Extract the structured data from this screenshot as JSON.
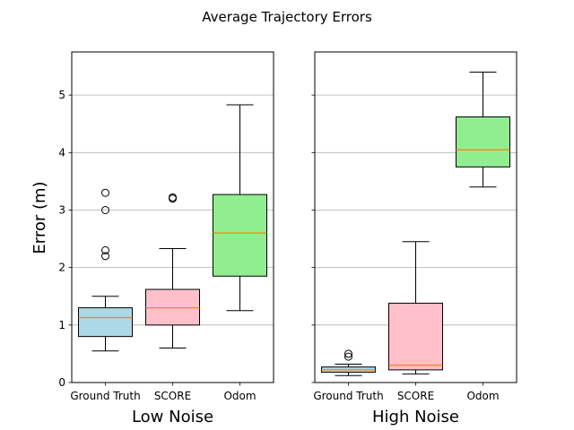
{
  "title": "Average Trajectory Errors",
  "chart_data": {
    "type": "box",
    "title": "Average Trajectory Errors",
    "ylabel": "Error (m)",
    "ylim": [
      0,
      5.75
    ],
    "yticks": [
      0,
      1,
      2,
      3,
      4,
      5
    ],
    "grid": "y",
    "categories": [
      "Ground Truth",
      "SCORE",
      "Odom"
    ],
    "colors": {
      "Ground Truth": "#add8e6",
      "SCORE": "#ffc0cb",
      "Odom": "#90ee90",
      "median": "#ff7f0e"
    },
    "panels": [
      {
        "xlabel": "Low Noise",
        "boxes": [
          {
            "category": "Ground Truth",
            "whisker_low": 0.55,
            "q1": 0.8,
            "median": 1.13,
            "q3": 1.3,
            "whisker_high": 1.5,
            "outliers": [
              2.2,
              2.3,
              3.0,
              3.3
            ]
          },
          {
            "category": "SCORE",
            "whisker_low": 0.6,
            "q1": 1.0,
            "median": 1.3,
            "q3": 1.62,
            "whisker_high": 2.33,
            "outliers": [
              3.2,
              3.22
            ]
          },
          {
            "category": "Odom",
            "whisker_low": 1.25,
            "q1": 1.85,
            "median": 2.6,
            "q3": 3.27,
            "whisker_high": 4.83,
            "outliers": []
          }
        ]
      },
      {
        "xlabel": "High Noise",
        "boxes": [
          {
            "category": "Ground Truth",
            "whisker_low": 0.12,
            "q1": 0.18,
            "median": 0.22,
            "q3": 0.27,
            "whisker_high": 0.32,
            "outliers": [
              0.45,
              0.5
            ]
          },
          {
            "category": "SCORE",
            "whisker_low": 0.15,
            "q1": 0.22,
            "median": 0.3,
            "q3": 1.38,
            "whisker_high": 2.45,
            "outliers": []
          },
          {
            "category": "Odom",
            "whisker_low": 3.4,
            "q1": 3.75,
            "median": 4.05,
            "q3": 4.62,
            "whisker_high": 5.4,
            "outliers": []
          }
        ]
      }
    ]
  }
}
